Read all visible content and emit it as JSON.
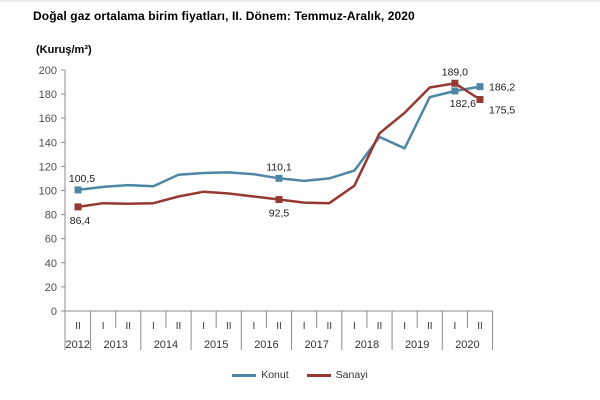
{
  "page": {
    "title": "Doğal gaz ortalama birim fiyatları, II. Dönem: Temmuz-Aralık, 2020",
    "unit_label": "(Kuruş/m³)"
  },
  "legend": [
    {
      "label": "Konut",
      "color": "#4e87a5"
    },
    {
      "label": "Sanayi",
      "color": "#963832"
    }
  ],
  "chart_data": {
    "type": "line",
    "title": "Doğal gaz ortalama birim fiyatları, II. Dönem: Temmuz-Aralık, 2020",
    "ylabel": "(Kuruş/m³)",
    "ylim": [
      0,
      200
    ],
    "ytick_step": 20,
    "grid": false,
    "legend_position": "bottom",
    "x_groups": [
      {
        "year": "2012",
        "periods": [
          "II"
        ]
      },
      {
        "year": "2013",
        "periods": [
          "I",
          "II"
        ]
      },
      {
        "year": "2014",
        "periods": [
          "I",
          "II"
        ]
      },
      {
        "year": "2015",
        "periods": [
          "I",
          "II"
        ]
      },
      {
        "year": "2016",
        "periods": [
          "I",
          "II"
        ]
      },
      {
        "year": "2017",
        "periods": [
          "I",
          "II"
        ]
      },
      {
        "year": "2018",
        "periods": [
          "I",
          "II"
        ]
      },
      {
        "year": "2019",
        "periods": [
          "I",
          "II"
        ]
      },
      {
        "year": "2020",
        "periods": [
          "I",
          "II"
        ]
      }
    ],
    "categories": [
      "2012-II",
      "2013-I",
      "2013-II",
      "2014-I",
      "2014-II",
      "2015-I",
      "2015-II",
      "2016-I",
      "2016-II",
      "2017-I",
      "2017-II",
      "2018-I",
      "2018-II",
      "2019-I",
      "2019-II",
      "2020-I",
      "2020-II"
    ],
    "series": [
      {
        "name": "Konut",
        "color": "#4e87a5",
        "values": [
          100.5,
          103,
          104.5,
          103.5,
          113,
          114.5,
          115,
          113.5,
          110.1,
          108,
          110,
          116.5,
          144.5,
          135,
          177.5,
          182.6,
          186.2
        ],
        "point_labels": [
          {
            "index": 0,
            "text": "100,5",
            "dx": 4,
            "dy": -8,
            "anchor": "middle"
          },
          {
            "index": 8,
            "text": "110,1",
            "dx": 0,
            "dy": -8,
            "anchor": "middle"
          },
          {
            "index": 15,
            "text": "182,6",
            "dx": 8,
            "dy": 16,
            "anchor": "middle"
          },
          {
            "index": 16,
            "text": "186,2",
            "dx": 9,
            "dy": 4,
            "anchor": "start"
          }
        ]
      },
      {
        "name": "Sanayi",
        "color": "#963832",
        "values": [
          86.4,
          89.5,
          89,
          89.5,
          95,
          99,
          97.5,
          95,
          92.5,
          90,
          89.5,
          104,
          147.5,
          164.5,
          185.5,
          189.0,
          175.5
        ],
        "point_labels": [
          {
            "index": 0,
            "text": "86,4",
            "dx": 2,
            "dy": 17,
            "anchor": "middle"
          },
          {
            "index": 8,
            "text": "92,5",
            "dx": 0,
            "dy": 17,
            "anchor": "middle"
          },
          {
            "index": 15,
            "text": "189,0",
            "dx": 0,
            "dy": -8,
            "anchor": "middle"
          },
          {
            "index": 16,
            "text": "175,5",
            "dx": 9,
            "dy": 14,
            "anchor": "start"
          }
        ]
      }
    ]
  }
}
